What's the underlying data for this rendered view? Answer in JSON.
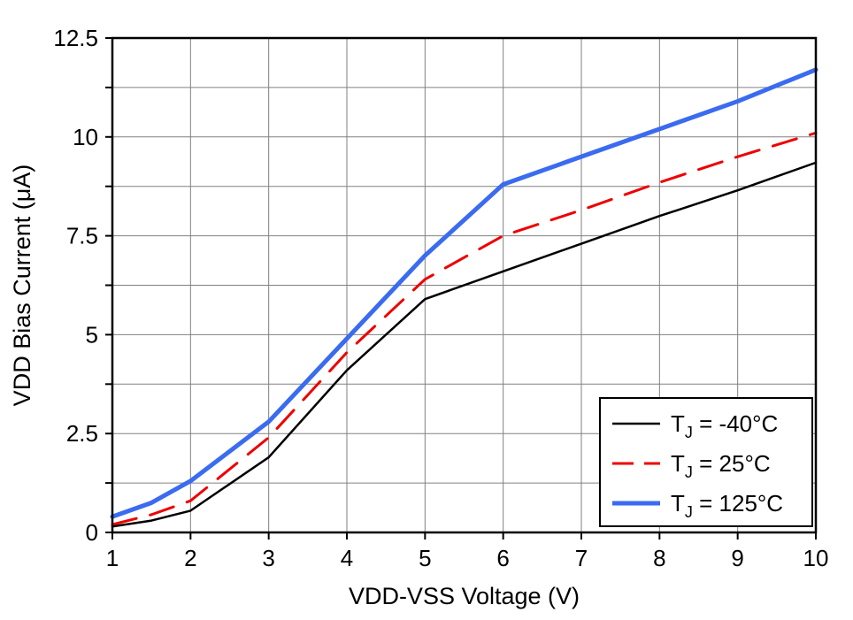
{
  "chart_data": {
    "type": "line",
    "title": "",
    "xlabel": "VDD-VSS Voltage (V)",
    "ylabel": "VDD Bias Current (μA)",
    "xlim": [
      1,
      10
    ],
    "ylim": [
      0,
      12.5
    ],
    "x_major_ticks": [
      1,
      2,
      3,
      4,
      5,
      6,
      7,
      8,
      9,
      10
    ],
    "y_major_ticks": [
      0,
      2.5,
      5,
      7.5,
      10,
      12.5
    ],
    "x_grid_step": 1,
    "y_grid_step": 1.25,
    "grid": true,
    "grid_color": "#808080",
    "axis_color": "#000000",
    "legend_position": "bottom-right",
    "x": [
      1,
      1.5,
      2,
      3,
      4,
      5,
      6,
      7,
      8,
      9,
      10
    ],
    "series": [
      {
        "name": "TJ = -40°C",
        "label_pre": "T",
        "label_sub": "J",
        "label_post": " = -40°C",
        "color": "#000000",
        "width": 2.5,
        "dash": "",
        "values": [
          0.15,
          0.3,
          0.55,
          1.9,
          4.1,
          5.9,
          6.6,
          7.3,
          8.0,
          8.65,
          9.35
        ]
      },
      {
        "name": "TJ = 25°C",
        "label_pre": "T",
        "label_sub": "J",
        "label_post": " = 25°C",
        "color": "#ee0000",
        "width": 3,
        "dash": "28 16",
        "values": [
          0.2,
          0.45,
          0.8,
          2.4,
          4.55,
          6.4,
          7.5,
          8.15,
          8.85,
          9.5,
          10.1
        ]
      },
      {
        "name": "TJ = 125°C",
        "label_pre": "T",
        "label_sub": "J",
        "label_post": " = 125°C",
        "color": "#3a6bf0",
        "width": 5,
        "dash": "",
        "values": [
          0.4,
          0.75,
          1.3,
          2.8,
          4.9,
          7.0,
          8.8,
          9.5,
          10.2,
          10.9,
          11.7
        ]
      }
    ]
  }
}
